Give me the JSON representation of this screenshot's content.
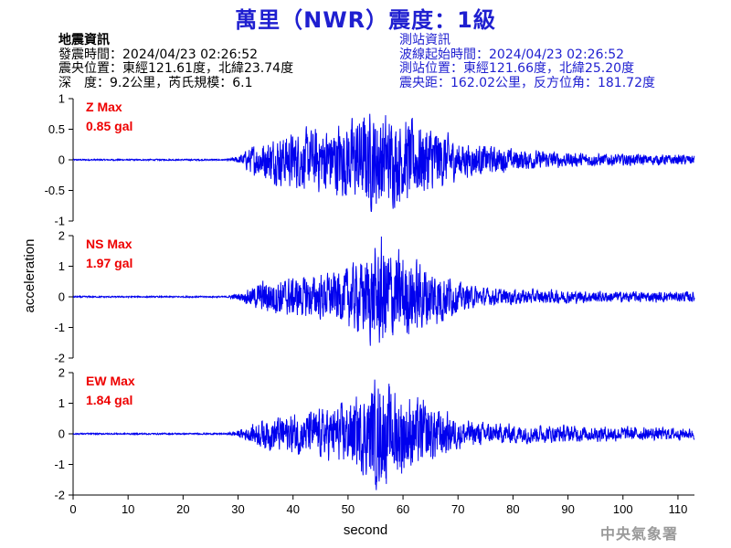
{
  "title": "萬里（NWR）震度：1級",
  "quake_info": {
    "heading": "地震資訊",
    "origin_time": "發震時間：2024/04/23 02:26:52",
    "epicenter": "震央位置：東經121.61度，北緯23.74度",
    "depth_magnitude": "深　度：9.2公里，芮氏規模：6.1"
  },
  "station_info": {
    "heading": "測站資訊",
    "wave_start_time": "波線起始時間：2024/04/23 02:26:52",
    "station_location": "測站位置：東經121.66度，北緯25.20度",
    "distance_azimuth": "震央距：162.02公里，反方位角：181.72度"
  },
  "watermark": "中央氣象署",
  "colors": {
    "trace": "#0000ee",
    "title": "#1f1fd0",
    "max_label": "#ee0000"
  },
  "chart_data": {
    "type": "line",
    "xlabel": "second",
    "ylabel": "acceleration",
    "xlim": [
      0,
      113
    ],
    "xticks": [
      0,
      10,
      20,
      30,
      40,
      50,
      60,
      70,
      80,
      90,
      100,
      110
    ],
    "grid": false,
    "panels": [
      {
        "component": "Z",
        "max_label": "Z Max",
        "max_value": "0.85 gal",
        "ylim": [
          -1,
          1
        ],
        "yticks": [
          1,
          0.5,
          0,
          -0.5,
          -1
        ],
        "ytick_labels": [
          "1",
          "0.5",
          "0",
          "-0.5",
          "-1"
        ],
        "peak": 0.85,
        "envelope": [
          [
            0,
            0.01
          ],
          [
            28,
            0.01
          ],
          [
            30,
            0.05
          ],
          [
            33,
            0.22
          ],
          [
            38,
            0.35
          ],
          [
            45,
            0.45
          ],
          [
            50,
            0.55
          ],
          [
            55,
            0.7
          ],
          [
            58,
            0.6
          ],
          [
            62,
            0.55
          ],
          [
            66,
            0.45
          ],
          [
            70,
            0.25
          ],
          [
            75,
            0.2
          ],
          [
            80,
            0.15
          ],
          [
            90,
            0.1
          ],
          [
            100,
            0.08
          ],
          [
            113,
            0.07
          ]
        ]
      },
      {
        "component": "NS",
        "max_label": "NS Max",
        "max_value": "1.97 gal",
        "ylim": [
          -2,
          2
        ],
        "yticks": [
          2,
          1,
          0,
          -1,
          -2
        ],
        "ytick_labels": [
          "2",
          "1",
          "0",
          "-1",
          "-2"
        ],
        "peak": 1.97,
        "envelope": [
          [
            0,
            0.02
          ],
          [
            28,
            0.02
          ],
          [
            31,
            0.15
          ],
          [
            35,
            0.5
          ],
          [
            40,
            0.55
          ],
          [
            48,
            0.7
          ],
          [
            53,
            1.1
          ],
          [
            56,
            1.6
          ],
          [
            59,
            1.3
          ],
          [
            63,
            1.0
          ],
          [
            67,
            0.8
          ],
          [
            70,
            0.4
          ],
          [
            75,
            0.25
          ],
          [
            85,
            0.2
          ],
          [
            100,
            0.15
          ],
          [
            113,
            0.15
          ]
        ]
      },
      {
        "component": "EW",
        "max_label": "EW Max",
        "max_value": "1.84 gal",
        "ylim": [
          -2,
          2
        ],
        "yticks": [
          2,
          1,
          0,
          -1,
          -2
        ],
        "ytick_labels": [
          "2",
          "1",
          "0",
          "-1",
          "-2"
        ],
        "peak": 1.84,
        "envelope": [
          [
            0,
            0.02
          ],
          [
            28,
            0.02
          ],
          [
            31,
            0.15
          ],
          [
            35,
            0.45
          ],
          [
            40,
            0.55
          ],
          [
            48,
            0.75
          ],
          [
            53,
            1.1
          ],
          [
            55,
            1.5
          ],
          [
            58,
            1.3
          ],
          [
            62,
            1.0
          ],
          [
            67,
            0.7
          ],
          [
            70,
            0.4
          ],
          [
            75,
            0.3
          ],
          [
            85,
            0.25
          ],
          [
            100,
            0.2
          ],
          [
            113,
            0.15
          ]
        ]
      }
    ]
  }
}
